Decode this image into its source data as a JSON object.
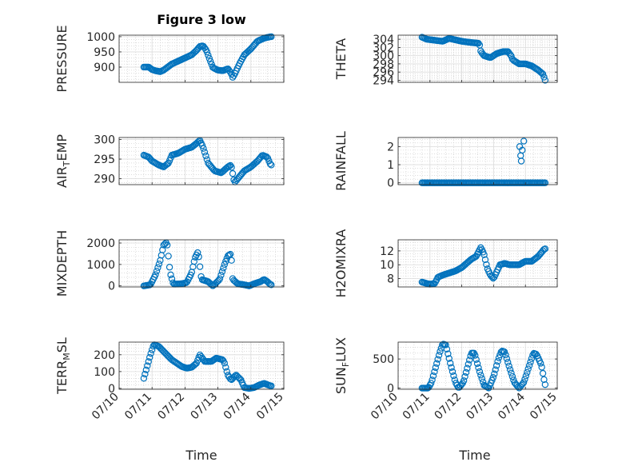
{
  "figure": {
    "title": "Figure 3 low",
    "marker_color": "#0072BD",
    "grid": "major and minor, dotted",
    "x_tick_labels": [
      "07/10",
      "07/11",
      "07/12",
      "07/13",
      "07/14",
      "07/15"
    ],
    "x_label": "Time"
  },
  "chart_data": [
    {
      "type": "scatter",
      "ylabel": "PRESSURE",
      "ylim": [
        850,
        1005
      ],
      "yticks": [
        900,
        950,
        1000
      ],
      "xlim": [
        "07/10",
        "07/15"
      ],
      "x_unit": "days since 07/10",
      "anchors": [
        [
          0.75,
          900
        ],
        [
          0.9,
          900
        ],
        [
          1.0,
          892
        ],
        [
          1.1,
          888
        ],
        [
          1.25,
          885
        ],
        [
          1.35,
          890
        ],
        [
          1.45,
          898
        ],
        [
          1.6,
          910
        ],
        [
          1.8,
          920
        ],
        [
          2.0,
          930
        ],
        [
          2.2,
          940
        ],
        [
          2.35,
          955
        ],
        [
          2.45,
          968
        ],
        [
          2.55,
          970
        ],
        [
          2.65,
          955
        ],
        [
          2.75,
          925
        ],
        [
          2.85,
          898
        ],
        [
          3.0,
          890
        ],
        [
          3.15,
          888
        ],
        [
          3.3,
          895
        ],
        [
          3.4,
          880
        ],
        [
          3.45,
          866
        ],
        [
          3.5,
          875
        ],
        [
          3.65,
          910
        ],
        [
          3.8,
          940
        ],
        [
          4.0,
          960
        ],
        [
          4.2,
          985
        ],
        [
          4.4,
          995
        ],
        [
          4.6,
          1000
        ]
      ],
      "n_points": 110
    },
    {
      "type": "scatter",
      "ylabel": "THETA",
      "ylim": [
        293.5,
        305
      ],
      "yticks": [
        294,
        296,
        298,
        300,
        302,
        304
      ],
      "xlim": [
        "07/10",
        "07/15"
      ],
      "x_unit": "days since 07/10",
      "anchors": [
        [
          0.75,
          304.5
        ],
        [
          0.9,
          304
        ],
        [
          1.1,
          303.8
        ],
        [
          1.4,
          303.5
        ],
        [
          1.6,
          304.2
        ],
        [
          2.0,
          303.5
        ],
        [
          2.3,
          303.2
        ],
        [
          2.55,
          303
        ],
        [
          2.6,
          301
        ],
        [
          2.7,
          300
        ],
        [
          2.9,
          299.5
        ],
        [
          3.1,
          300.5
        ],
        [
          3.3,
          301
        ],
        [
          3.45,
          301
        ],
        [
          3.55,
          300
        ],
        [
          3.6,
          299
        ],
        [
          3.8,
          298
        ],
        [
          4.0,
          298
        ],
        [
          4.2,
          297.5
        ],
        [
          4.4,
          296.5
        ],
        [
          4.55,
          295.5
        ],
        [
          4.62,
          294
        ]
      ],
      "n_points": 110
    },
    {
      "type": "scatter",
      "ylabel": "AIR_TEMP",
      "ylim": [
        288.5,
        300.5
      ],
      "yticks": [
        290,
        295,
        300
      ],
      "xlim": [
        "07/10",
        "07/15"
      ],
      "x_unit": "days since 07/10",
      "anchors": [
        [
          0.75,
          296
        ],
        [
          0.9,
          295.5
        ],
        [
          1.0,
          294.5
        ],
        [
          1.2,
          293.5
        ],
        [
          1.35,
          293
        ],
        [
          1.5,
          294
        ],
        [
          1.6,
          296
        ],
        [
          1.8,
          296.5
        ],
        [
          2.0,
          297.5
        ],
        [
          2.2,
          298
        ],
        [
          2.35,
          299
        ],
        [
          2.45,
          299.8
        ],
        [
          2.55,
          298
        ],
        [
          2.7,
          294
        ],
        [
          2.9,
          292
        ],
        [
          3.1,
          291.5
        ],
        [
          3.3,
          293
        ],
        [
          3.4,
          293.5
        ],
        [
          3.5,
          289
        ],
        [
          3.6,
          290
        ],
        [
          3.8,
          292
        ],
        [
          4.0,
          293
        ],
        [
          4.2,
          294.5
        ],
        [
          4.35,
          296
        ],
        [
          4.5,
          295.5
        ],
        [
          4.6,
          293.5
        ]
      ],
      "n_points": 110
    },
    {
      "type": "scatter",
      "ylabel": "RAINFALL",
      "ylim": [
        -0.1,
        2.5
      ],
      "yticks": [
        0,
        1,
        2
      ],
      "xlim": [
        "07/10",
        "07/15"
      ],
      "x_unit": "days since 07/10",
      "baseline": 0,
      "spikes": [
        [
          3.82,
          2.0
        ],
        [
          3.85,
          1.5
        ],
        [
          3.87,
          1.2
        ],
        [
          3.9,
          1.8
        ],
        [
          3.95,
          2.3
        ]
      ],
      "n_points": 110
    },
    {
      "type": "scatter",
      "ylabel": "MIXDEPTH",
      "ylim": [
        -50,
        2150
      ],
      "yticks": [
        0,
        1000,
        2000
      ],
      "xlim": [
        "07/10",
        "07/15"
      ],
      "x_unit": "days since 07/10",
      "anchors": [
        [
          0.75,
          0
        ],
        [
          0.95,
          50
        ],
        [
          1.1,
          500
        ],
        [
          1.25,
          1200
        ],
        [
          1.35,
          1900
        ],
        [
          1.45,
          2050
        ],
        [
          1.55,
          600
        ],
        [
          1.65,
          80
        ],
        [
          1.9,
          100
        ],
        [
          2.05,
          150
        ],
        [
          2.2,
          600
        ],
        [
          2.3,
          1300
        ],
        [
          2.4,
          1600
        ],
        [
          2.5,
          300
        ],
        [
          2.7,
          200
        ],
        [
          2.85,
          0
        ],
        [
          3.05,
          300
        ],
        [
          3.2,
          1000
        ],
        [
          3.3,
          1400
        ],
        [
          3.4,
          1500
        ],
        [
          3.45,
          300
        ],
        [
          3.6,
          100
        ],
        [
          3.8,
          50
        ],
        [
          3.95,
          0
        ],
        [
          4.1,
          100
        ],
        [
          4.3,
          200
        ],
        [
          4.4,
          300
        ],
        [
          4.5,
          200
        ],
        [
          4.6,
          50
        ]
      ],
      "n_points": 110
    },
    {
      "type": "scatter",
      "ylabel": "H2OMIXRA",
      "ylim": [
        6.8,
        13.6
      ],
      "yticks": [
        8,
        10,
        12
      ],
      "xlim": [
        "07/10",
        "07/15"
      ],
      "x_unit": "days since 07/10",
      "anchors": [
        [
          0.75,
          7.5
        ],
        [
          0.9,
          7.3
        ],
        [
          1.0,
          7.2
        ],
        [
          1.15,
          7.3
        ],
        [
          1.25,
          8.2
        ],
        [
          1.4,
          8.5
        ],
        [
          1.6,
          8.8
        ],
        [
          1.8,
          9.1
        ],
        [
          2.0,
          9.6
        ],
        [
          2.15,
          10.2
        ],
        [
          2.3,
          10.8
        ],
        [
          2.45,
          11.2
        ],
        [
          2.6,
          12.5
        ],
        [
          2.7,
          11.5
        ],
        [
          2.8,
          9.5
        ],
        [
          2.9,
          8.5
        ],
        [
          3.0,
          8.0
        ],
        [
          3.1,
          9.0
        ],
        [
          3.2,
          10.0
        ],
        [
          3.35,
          10.2
        ],
        [
          3.5,
          10.0
        ],
        [
          3.65,
          10.0
        ],
        [
          3.8,
          10.0
        ],
        [
          4.0,
          10.5
        ],
        [
          4.2,
          10.5
        ],
        [
          4.4,
          11.2
        ],
        [
          4.6,
          12.3
        ]
      ],
      "n_points": 110
    },
    {
      "type": "scatter",
      "ylabel": "TERR_MSL",
      "ylim": [
        -5,
        275
      ],
      "yticks": [
        0,
        100,
        200
      ],
      "xlim": [
        "07/10",
        "07/15"
      ],
      "x_unit": "days since 07/10",
      "anchors": [
        [
          0.75,
          60
        ],
        [
          0.85,
          130
        ],
        [
          0.95,
          200
        ],
        [
          1.05,
          260
        ],
        [
          1.2,
          250
        ],
        [
          1.3,
          230
        ],
        [
          1.45,
          200
        ],
        [
          1.6,
          170
        ],
        [
          1.75,
          150
        ],
        [
          1.9,
          130
        ],
        [
          2.05,
          120
        ],
        [
          2.2,
          125
        ],
        [
          2.35,
          150
        ],
        [
          2.45,
          200
        ],
        [
          2.6,
          160
        ],
        [
          2.8,
          160
        ],
        [
          2.95,
          180
        ],
        [
          3.15,
          170
        ],
        [
          3.2,
          150
        ],
        [
          3.3,
          80
        ],
        [
          3.4,
          50
        ],
        [
          3.55,
          80
        ],
        [
          3.7,
          50
        ],
        [
          3.8,
          5
        ],
        [
          3.95,
          0
        ],
        [
          4.1,
          5
        ],
        [
          4.25,
          20
        ],
        [
          4.4,
          30
        ],
        [
          4.6,
          15
        ]
      ],
      "n_points": 110
    },
    {
      "type": "scatter",
      "ylabel": "SUN_FLUX",
      "ylim": [
        -20,
        790
      ],
      "yticks": [
        0,
        500
      ],
      "xlim": [
        "07/10",
        "07/15"
      ],
      "x_unit": "days since 07/10",
      "anchors": [
        [
          0.75,
          0
        ],
        [
          0.95,
          0
        ],
        [
          1.05,
          100
        ],
        [
          1.2,
          400
        ],
        [
          1.3,
          600
        ],
        [
          1.4,
          760
        ],
        [
          1.5,
          740
        ],
        [
          1.65,
          400
        ],
        [
          1.8,
          100
        ],
        [
          1.9,
          0
        ],
        [
          2.05,
          100
        ],
        [
          2.2,
          400
        ],
        [
          2.3,
          600
        ],
        [
          2.4,
          600
        ],
        [
          2.55,
          300
        ],
        [
          2.7,
          50
        ],
        [
          2.85,
          0
        ],
        [
          3.0,
          200
        ],
        [
          3.15,
          500
        ],
        [
          3.25,
          640
        ],
        [
          3.35,
          620
        ],
        [
          3.5,
          350
        ],
        [
          3.65,
          100
        ],
        [
          3.8,
          0
        ],
        [
          3.95,
          100
        ],
        [
          4.1,
          350
        ],
        [
          4.25,
          600
        ],
        [
          4.35,
          580
        ],
        [
          4.5,
          400
        ],
        [
          4.6,
          100
        ],
        [
          4.65,
          0
        ]
      ],
      "n_points": 110
    }
  ]
}
